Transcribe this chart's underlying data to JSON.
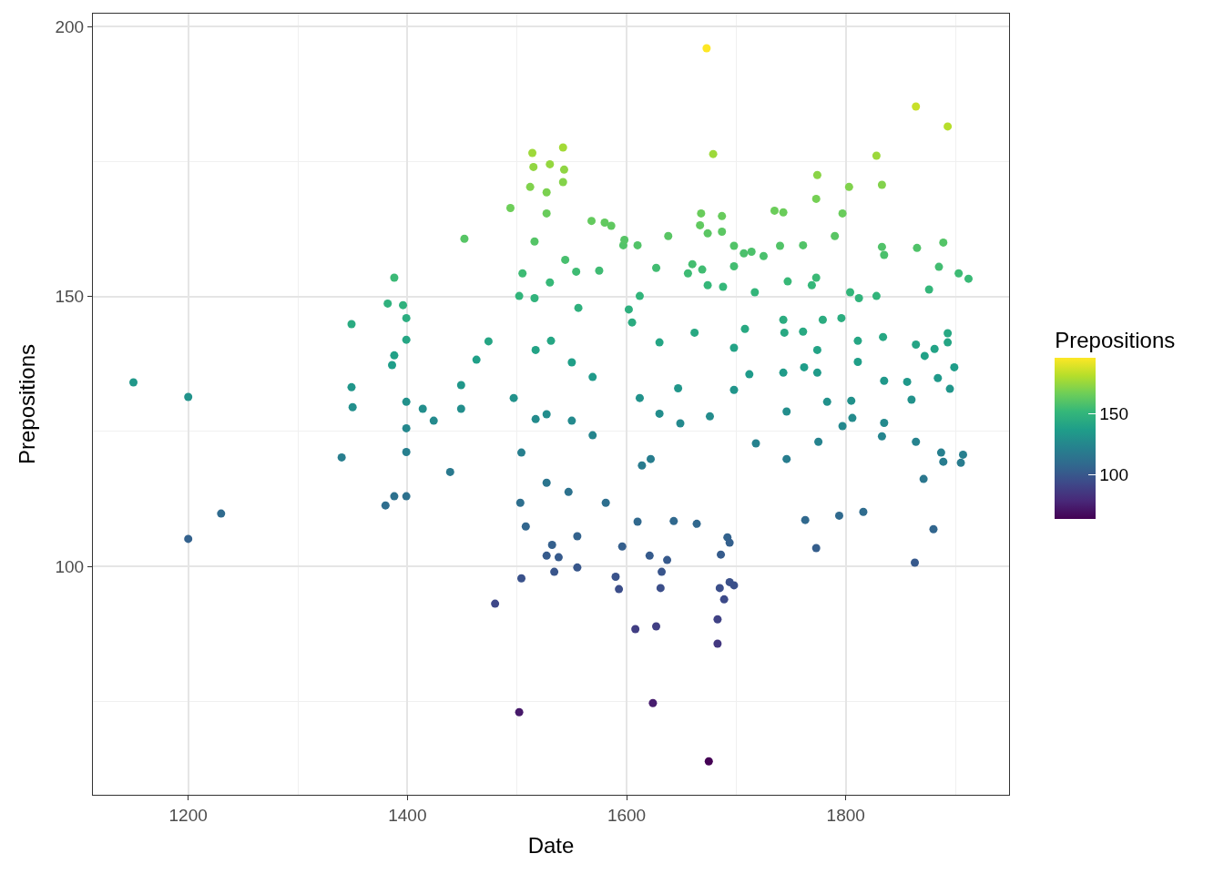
{
  "chart_data": {
    "type": "scatter",
    "xlabel": "Date",
    "ylabel": "Prepositions",
    "clabel": "Prepositions",
    "xlim": [
      1113,
      1949
    ],
    "ylim": [
      57.7,
      202.4
    ],
    "xticks": [
      1200,
      1400,
      1600,
      1800
    ],
    "yticks": [
      100,
      150,
      200
    ],
    "clim": [
      64,
      196
    ],
    "cticks": [
      100,
      150
    ],
    "grid": true,
    "marker": "circle",
    "legend": false,
    "x": [
      1150,
      1200,
      1200,
      1230,
      1340,
      1349,
      1349,
      1350,
      1380,
      1382,
      1388,
      1388,
      1386,
      1388,
      1396,
      1399,
      1399,
      1399,
      1399,
      1399,
      1399,
      1414,
      1424,
      1439,
      1449,
      1449,
      1452,
      1463,
      1474,
      1480,
      1494,
      1497,
      1502,
      1504,
      1503,
      1502,
      1505,
      1504,
      1512,
      1514,
      1515,
      1516,
      1516,
      1517,
      1517,
      1508,
      1527,
      1527,
      1527,
      1530,
      1527,
      1527,
      1530,
      1531,
      1532,
      1534,
      1538,
      1542,
      1542,
      1543,
      1544,
      1547,
      1555,
      1555,
      1554,
      1556,
      1550,
      1550,
      1568,
      1575,
      1580,
      1586,
      1569,
      1569,
      1581,
      1590,
      1593,
      1596,
      1597,
      1598,
      1602,
      1605,
      1608,
      1610,
      1610,
      1612,
      1612,
      1614,
      1621,
      1622,
      1627,
      1624,
      1627,
      1630,
      1630,
      1631,
      1632,
      1637,
      1638,
      1643,
      1647,
      1649,
      1656,
      1660,
      1662,
      1667,
      1668,
      1669,
      1673,
      1674,
      1674,
      1675,
      1679,
      1664,
      1676,
      1683,
      1683,
      1685,
      1686,
      1687,
      1687,
      1688,
      1689,
      1692,
      1694,
      1694,
      1698,
      1698,
      1698,
      1698,
      1698,
      1707,
      1708,
      1712,
      1714,
      1717,
      1718,
      1725,
      1735,
      1743,
      1740,
      1743,
      1744,
      1743,
      1746,
      1746,
      1747,
      1761,
      1761,
      1762,
      1763,
      1769,
      1773,
      1774,
      1773,
      1774,
      1774,
      1775,
      1773,
      1779,
      1783,
      1790,
      1794,
      1796,
      1797,
      1797,
      1803,
      1804,
      1805,
      1806,
      1812,
      1811,
      1811,
      1816,
      1828,
      1828,
      1833,
      1833,
      1835,
      1834,
      1835,
      1835,
      1833,
      1856,
      1860,
      1864,
      1865,
      1864,
      1864,
      1863,
      1871,
      1872,
      1876,
      1880,
      1881,
      1885,
      1884,
      1887,
      1889,
      1889,
      1893,
      1893,
      1893,
      1895,
      1899,
      1903,
      1905,
      1907,
      1912
    ],
    "values": [
      134.1,
      131.4,
      105.1,
      109.8,
      120.2,
      144.9,
      133.2,
      129.5,
      111.3,
      148.7,
      153.5,
      139.1,
      137.3,
      113,
      148.4,
      146,
      142,
      130.5,
      125.6,
      121.2,
      113,
      129.2,
      127,
      117.5,
      133.6,
      129.2,
      160.7,
      138.3,
      141.7,
      93.1,
      166.4,
      131.2,
      73,
      97.8,
      111.8,
      150.1,
      154.3,
      121.1,
      170.3,
      176.6,
      174,
      160.2,
      149.7,
      140.1,
      127.3,
      107.4,
      128.2,
      115.5,
      102,
      174.5,
      169.3,
      165.4,
      152.6,
      141.8,
      104,
      99,
      101.7,
      177.6,
      171.2,
      173.5,
      156.8,
      113.8,
      99.8,
      105.6,
      154.6,
      147.9,
      137.8,
      127,
      164,
      154.8,
      163.7,
      163.1,
      135.1,
      124.3,
      111.8,
      98.1,
      95.8,
      103.7,
      159.5,
      160.5,
      147.6,
      145.2,
      88.4,
      108.3,
      159.5,
      150.1,
      131.2,
      118.7,
      102,
      119.9,
      88.9,
      74.7,
      155.3,
      128.3,
      141.5,
      96,
      99,
      101.2,
      161.2,
      108.4,
      133,
      126.5,
      154.3,
      156,
      143.3,
      163.2,
      165.4,
      155,
      196,
      161.7,
      152.1,
      63.9,
      176.4,
      107.9,
      127.8,
      90.2,
      85.7,
      96,
      102.2,
      162,
      164.9,
      151.8,
      93.9,
      105.4,
      104.4,
      97.1,
      96.5,
      159.4,
      155.6,
      140.5,
      132.7,
      158,
      144,
      135.6,
      158.3,
      150.8,
      122.8,
      157.5,
      165.9,
      165.6,
      159.4,
      145.7,
      143.3,
      135.9,
      128.7,
      119.9,
      152.8,
      159.5,
      143.5,
      136.9,
      108.6,
      152.1,
      153.5,
      172.5,
      168.1,
      140.1,
      135.9,
      123.1,
      103.4,
      145.7,
      130.5,
      161.2,
      109.4,
      146,
      126,
      165.4,
      170.3,
      150.8,
      130.7,
      127.5,
      149.7,
      141.8,
      137.9,
      110.1,
      176.1,
      150.1,
      170.7,
      159.2,
      157.7,
      142.5,
      134.4,
      126.6,
      124.1,
      134.2,
      130.9,
      185.2,
      159,
      141.1,
      123.1,
      100.7,
      116.2,
      139,
      151.3,
      106.9,
      140.3,
      155.5,
      134.9,
      121.1,
      119.4,
      160,
      181.5,
      143.2,
      141.5,
      132.9,
      136.9,
      154.3,
      119.2,
      120.7,
      153.3
    ],
    "cvalues": [
      134.1,
      131.4,
      105.1,
      109.8,
      120.2,
      144.9,
      133.2,
      129.5,
      111.3,
      148.7,
      153.5,
      139.1,
      137.3,
      113,
      148.4,
      146,
      142,
      130.5,
      125.6,
      121.2,
      113,
      129.2,
      127,
      117.5,
      133.6,
      129.2,
      160.7,
      138.3,
      141.7,
      93.1,
      166.4,
      131.2,
      73,
      97.8,
      111.8,
      150.1,
      154.3,
      121.1,
      170.3,
      176.6,
      174,
      160.2,
      149.7,
      140.1,
      127.3,
      107.4,
      128.2,
      115.5,
      102,
      174.5,
      169.3,
      165.4,
      152.6,
      141.8,
      104,
      99,
      101.7,
      177.6,
      171.2,
      173.5,
      156.8,
      113.8,
      99.8,
      105.6,
      154.6,
      147.9,
      137.8,
      127,
      164,
      154.8,
      163.7,
      163.1,
      135.1,
      124.3,
      111.8,
      98.1,
      95.8,
      103.7,
      159.5,
      160.5,
      147.6,
      145.2,
      88.4,
      108.3,
      159.5,
      150.1,
      131.2,
      118.7,
      102,
      119.9,
      88.9,
      74.7,
      155.3,
      128.3,
      141.5,
      96,
      99,
      101.2,
      161.2,
      108.4,
      133,
      126.5,
      154.3,
      156,
      143.3,
      163.2,
      165.4,
      155,
      196,
      161.7,
      152.1,
      63.9,
      176.4,
      107.9,
      127.8,
      90.2,
      85.7,
      96,
      102.2,
      162,
      164.9,
      151.8,
      93.9,
      105.4,
      104.4,
      97.1,
      96.5,
      159.4,
      155.6,
      140.5,
      132.7,
      158,
      144,
      135.6,
      158.3,
      150.8,
      122.8,
      157.5,
      165.9,
      165.6,
      159.4,
      145.7,
      143.3,
      135.9,
      128.7,
      119.9,
      152.8,
      159.5,
      143.5,
      136.9,
      108.6,
      152.1,
      153.5,
      172.5,
      168.1,
      140.1,
      135.9,
      123.1,
      103.4,
      145.7,
      130.5,
      161.2,
      109.4,
      146,
      126,
      165.4,
      170.3,
      150.8,
      130.7,
      127.5,
      149.7,
      141.8,
      137.9,
      110.1,
      176.1,
      150.1,
      170.7,
      159.2,
      157.7,
      142.5,
      134.4,
      126.6,
      124.1,
      134.2,
      130.9,
      185.2,
      159,
      141.1,
      123.1,
      100.7,
      116.2,
      139,
      151.3,
      106.9,
      140.3,
      155.5,
      134.9,
      121.1,
      119.4,
      160,
      181.5,
      143.2,
      141.5,
      132.9,
      136.9,
      154.3,
      119.2,
      120.7,
      153.3
    ]
  }
}
